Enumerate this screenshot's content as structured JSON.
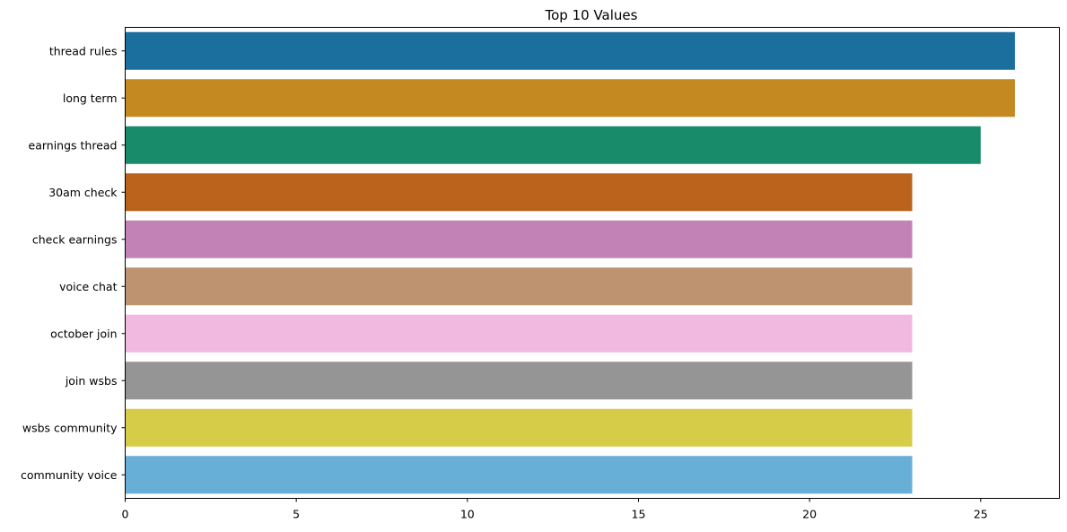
{
  "chart_data": {
    "type": "bar",
    "orientation": "horizontal",
    "title": "Top 10 Values",
    "xlabel": "",
    "ylabel": "",
    "categories": [
      "thread rules",
      "long term",
      "earnings thread",
      "30am check",
      "check earnings",
      "voice chat",
      "october join",
      "join wsbs",
      "wsbs community",
      "community voice"
    ],
    "values": [
      26,
      26,
      25,
      23,
      23,
      23,
      23,
      23,
      23,
      23
    ],
    "colors": [
      "#1a6f9f",
      "#c48920",
      "#178b6a",
      "#bb631c",
      "#c382b5",
      "#bd9370",
      "#f1b8e0",
      "#959595",
      "#d6cc47",
      "#67afd7"
    ],
    "xlim": [
      0,
      27.3
    ],
    "xticks": [
      0,
      5,
      10,
      15,
      20,
      25
    ],
    "grid": false,
    "legend": "none"
  }
}
